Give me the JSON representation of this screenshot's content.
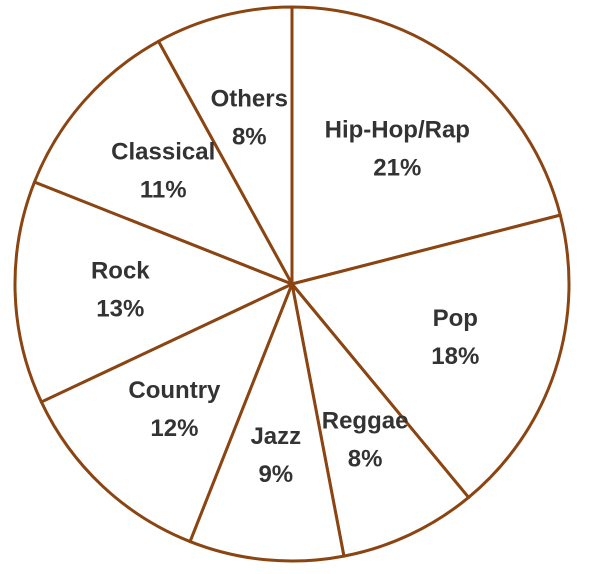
{
  "colors": {
    "outline": "#8B4513",
    "fill": "#ffffff",
    "text": "#333333"
  },
  "chart_data": {
    "type": "pie",
    "title": "",
    "start": "top",
    "direction": "clockwise",
    "slices": [
      {
        "label": "Hip-Hop/Rap",
        "value": 21,
        "value_label": "21%"
      },
      {
        "label": "Pop",
        "value": 18,
        "value_label": "18%"
      },
      {
        "label": "Reggae",
        "value": 8,
        "value_label": "8%"
      },
      {
        "label": "Jazz",
        "value": 9,
        "value_label": "9%"
      },
      {
        "label": "Country",
        "value": 12,
        "value_label": "12%"
      },
      {
        "label": "Rock",
        "value": 13,
        "value_label": "13%"
      },
      {
        "label": "Classical",
        "value": 11,
        "value_label": "11%"
      },
      {
        "label": "Others",
        "value": 8,
        "value_label": "8%"
      }
    ]
  }
}
